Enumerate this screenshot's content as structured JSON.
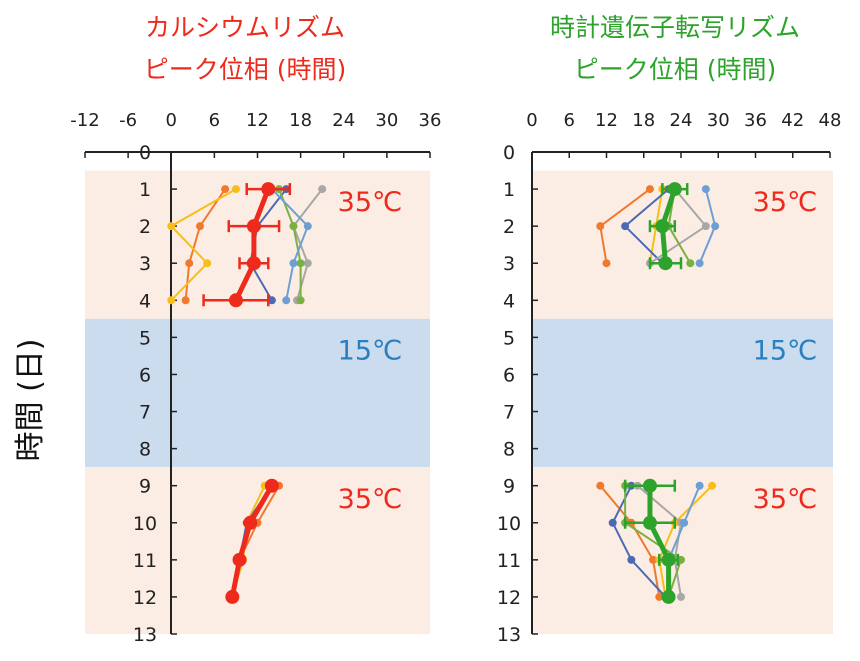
{
  "figure": {
    "ylabel": "時間 (日)"
  },
  "colors": {
    "warm_band": "#fcede4",
    "cold_band": "#cadcee",
    "red": "#ee2a1c",
    "green": "#2ea32c",
    "blue_text": "#2a7fc0",
    "orange": "#ef7a2e",
    "yellow": "#f7be1a",
    "navy": "#4a6ab3",
    "gray": "#a7a7a7",
    "olive": "#79b042",
    "lightblue": "#6e9fd4"
  },
  "chart_data": [
    {
      "type": "line",
      "title": [
        "カルシウムリズム",
        "ピーク位相 (時間)"
      ],
      "title_color": "#ee2a1c",
      "xlim": [
        -12,
        36
      ],
      "xticks": [
        -12,
        -6,
        0,
        6,
        12,
        18,
        24,
        30,
        36
      ],
      "ylim": [
        0,
        13
      ],
      "yticks": [
        0,
        1,
        2,
        3,
        4,
        5,
        6,
        7,
        8,
        9,
        10,
        11,
        12,
        13
      ],
      "ylabel": "時間 (日)",
      "bands": [
        {
          "from": 0.5,
          "to": 4.5,
          "kind": "warm"
        },
        {
          "from": 4.5,
          "to": 8.5,
          "kind": "cold"
        },
        {
          "from": 8.5,
          "to": 13,
          "kind": "warm"
        }
      ],
      "band_labels": [
        {
          "text": "35℃",
          "day": 1.3,
          "color": "#ee2a1c"
        },
        {
          "text": "15℃",
          "day": 5.3,
          "color": "#2a7fc0"
        },
        {
          "text": "35℃",
          "day": 9.3,
          "color": "#ee2a1c"
        }
      ],
      "series": [
        {
          "color": "#ef7a2e",
          "points": [
            [
              7.5,
              1
            ],
            [
              4,
              2
            ],
            [
              2.5,
              3
            ],
            [
              2,
              4
            ]
          ]
        },
        {
          "color": "#f7be1a",
          "points": [
            [
              9,
              1
            ],
            [
              0,
              2
            ],
            [
              5,
              3
            ],
            [
              0,
              4
            ]
          ]
        },
        {
          "color": "#4a6ab3",
          "points": [
            [
              16,
              1
            ],
            [
              12,
              2
            ],
            [
              11,
              3
            ],
            [
              14,
              4
            ]
          ]
        },
        {
          "color": "#a7a7a7",
          "points": [
            [
              21,
              1
            ],
            [
              17,
              2
            ],
            [
              19,
              3
            ],
            [
              17.5,
              4
            ]
          ]
        },
        {
          "color": "#79b042",
          "points": [
            [
              15,
              1
            ],
            [
              17,
              2
            ],
            [
              18,
              3
            ],
            [
              18,
              4
            ]
          ]
        },
        {
          "color": "#6e9fd4",
          "points": [
            [
              14,
              1
            ],
            [
              19,
              2
            ],
            [
              17,
              3
            ],
            [
              16,
              4
            ]
          ]
        },
        {
          "color": "#ef7a2e",
          "points": [
            [
              15,
              9
            ],
            [
              12,
              10
            ],
            [
              9.5,
              11
            ],
            [
              8.5,
              12
            ]
          ]
        },
        {
          "color": "#f7be1a",
          "points": [
            [
              13,
              9
            ],
            [
              10.5,
              10
            ],
            [
              10,
              11
            ],
            [
              8.5,
              12
            ]
          ]
        },
        {
          "color": "#4a6ab3",
          "points": [
            [
              14,
              9
            ],
            [
              10.5,
              10
            ],
            [
              9.5,
              11
            ],
            [
              8.5,
              12
            ]
          ]
        }
      ],
      "mean": {
        "color": "#ee2a1c",
        "points": [
          [
            13.5,
            1
          ],
          [
            11.5,
            2
          ],
          [
            11.5,
            3
          ],
          [
            9,
            4
          ],
          [
            14,
            9
          ],
          [
            11,
            10
          ],
          [
            9.5,
            11
          ],
          [
            8.5,
            12
          ]
        ],
        "errors": [
          3,
          3.5,
          2,
          4.5,
          0,
          0,
          0,
          0
        ]
      }
    },
    {
      "type": "line",
      "title": [
        "時計遺伝子転写リズム",
        "ピーク位相 (時間)"
      ],
      "title_color": "#2ea32c",
      "xlim": [
        0,
        48
      ],
      "xticks": [
        0,
        6,
        12,
        18,
        24,
        30,
        36,
        42,
        48
      ],
      "ylim": [
        0,
        13
      ],
      "yticks": [
        0,
        1,
        2,
        3,
        4,
        5,
        6,
        7,
        8,
        9,
        10,
        11,
        12,
        13
      ],
      "bands": [
        {
          "from": 0.5,
          "to": 4.5,
          "kind": "warm"
        },
        {
          "from": 4.5,
          "to": 8.5,
          "kind": "cold"
        },
        {
          "from": 8.5,
          "to": 13,
          "kind": "warm"
        }
      ],
      "band_labels": [
        {
          "text": "35℃",
          "day": 1.3,
          "color": "#ee2a1c"
        },
        {
          "text": "15℃",
          "day": 5.3,
          "color": "#2a7fc0"
        },
        {
          "text": "35℃",
          "day": 9.3,
          "color": "#ee2a1c"
        }
      ],
      "series": [
        {
          "color": "#f7be1a",
          "points": [
            [
              21,
              1
            ],
            [
              20,
              2
            ],
            [
              19,
              3
            ]
          ]
        },
        {
          "color": "#ef7a2e",
          "points": [
            [
              19,
              1
            ],
            [
              11,
              2
            ],
            [
              12,
              3
            ]
          ]
        },
        {
          "color": "#4a6ab3",
          "points": [
            [
              22,
              1
            ],
            [
              15,
              2
            ],
            [
              21,
              3
            ]
          ]
        },
        {
          "color": "#a7a7a7",
          "points": [
            [
              23,
              1
            ],
            [
              28,
              2
            ],
            [
              19,
              3
            ]
          ]
        },
        {
          "color": "#79b042",
          "points": [
            [
              23,
              1
            ],
            [
              22,
              2
            ],
            [
              25.5,
              3
            ]
          ]
        },
        {
          "color": "#6e9fd4",
          "points": [
            [
              28,
              1
            ],
            [
              29.5,
              2
            ],
            [
              27,
              3
            ]
          ]
        },
        {
          "color": "#ef7a2e",
          "points": [
            [
              11,
              9
            ],
            [
              16,
              10
            ],
            [
              19.5,
              11
            ],
            [
              20.5,
              12
            ]
          ]
        },
        {
          "color": "#f7be1a",
          "points": [
            [
              29,
              9
            ],
            [
              23,
              10
            ],
            [
              20.5,
              11
            ],
            [
              21.5,
              12
            ]
          ]
        },
        {
          "color": "#4a6ab3",
          "points": [
            [
              16,
              9
            ],
            [
              13,
              10
            ],
            [
              16,
              11
            ],
            [
              21.5,
              12
            ]
          ]
        },
        {
          "color": "#a7a7a7",
          "points": [
            [
              17,
              9
            ],
            [
              24,
              10
            ],
            [
              23,
              11
            ],
            [
              24,
              12
            ]
          ]
        },
        {
          "color": "#79b042",
          "points": [
            [
              15,
              9
            ],
            [
              15,
              10
            ],
            [
              24,
              11
            ],
            [
              22,
              12
            ]
          ]
        },
        {
          "color": "#6e9fd4",
          "points": [
            [
              27,
              9
            ],
            [
              24.5,
              10
            ],
            [
              22,
              11
            ],
            [
              22,
              12
            ]
          ]
        }
      ],
      "mean": {
        "color": "#2ea32c",
        "points": [
          [
            23,
            1
          ],
          [
            21,
            2
          ],
          [
            21.5,
            3
          ],
          [
            19,
            9
          ],
          [
            19,
            10
          ],
          [
            22,
            11
          ],
          [
            22,
            12
          ]
        ],
        "errors": [
          2,
          2,
          2.5,
          4,
          4,
          1.5,
          0
        ]
      }
    }
  ]
}
